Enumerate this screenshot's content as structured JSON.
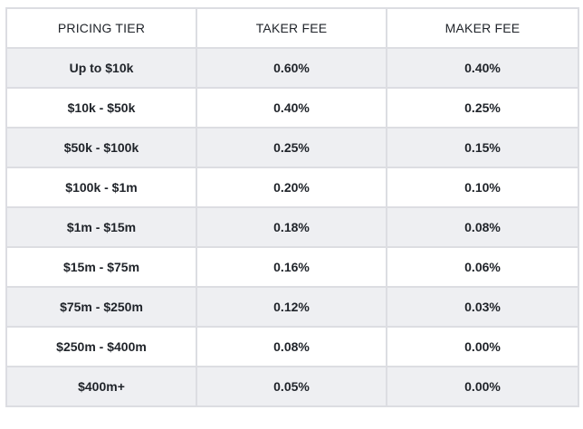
{
  "table": {
    "headers": {
      "tier": "PRICING TIER",
      "taker": "TAKER FEE",
      "maker": "MAKER FEE"
    },
    "rows": [
      {
        "tier": "Up to $10k",
        "taker": "0.60%",
        "maker": "0.40%"
      },
      {
        "tier": "$10k - $50k",
        "taker": "0.40%",
        "maker": "0.25%"
      },
      {
        "tier": "$50k - $100k",
        "taker": "0.25%",
        "maker": "0.15%"
      },
      {
        "tier": "$100k - $1m",
        "taker": "0.20%",
        "maker": "0.10%"
      },
      {
        "tier": "$1m - $15m",
        "taker": "0.18%",
        "maker": "0.08%"
      },
      {
        "tier": "$15m - $75m",
        "taker": "0.16%",
        "maker": "0.06%"
      },
      {
        "tier": "$75m - $250m",
        "taker": "0.12%",
        "maker": "0.03%"
      },
      {
        "tier": "$250m - $400m",
        "taker": "0.08%",
        "maker": "0.00%"
      },
      {
        "tier": "$400m+",
        "taker": "0.05%",
        "maker": "0.00%"
      }
    ]
  },
  "colors": {
    "row_shade": "#eeeff2",
    "border": "#dcdde2",
    "text": "#1f2329"
  }
}
